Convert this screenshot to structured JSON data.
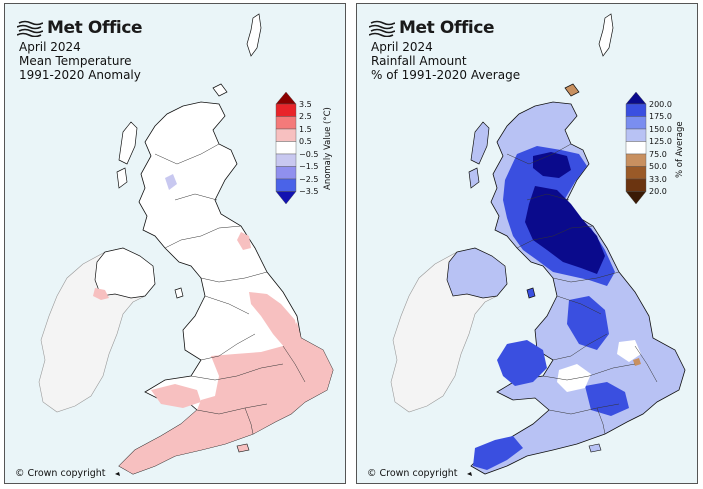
{
  "panels": [
    {
      "brand": "Met Office",
      "title_lines": [
        "April 2024",
        "Mean Temperature",
        "1991-2020 Anomaly"
      ],
      "legend_title": "Anomaly Value (°C)",
      "legend_ticks": [
        "3.5",
        "2.5",
        "1.5",
        "0.5",
        "−0.5",
        "−1.5",
        "−2.5",
        "−3.5"
      ],
      "legend_colors": [
        "#8b0000",
        "#e8242a",
        "#f47a7a",
        "#f7c0c0",
        "#ffffff",
        "#c8c8f0",
        "#9090ee",
        "#4a63e8",
        "#1212b0"
      ],
      "copyright": "© Crown copyright"
    },
    {
      "brand": "Met Office",
      "title_lines": [
        "April 2024",
        "Rainfall Amount",
        "% of 1991-2020 Average"
      ],
      "legend_title": "% of Average",
      "legend_ticks": [
        "200.0",
        "175.0",
        "150.0",
        "125.0",
        "75.0",
        "50.0",
        "33.0",
        "20.0"
      ],
      "legend_colors": [
        "#0a0a8c",
        "#3a4fe0",
        "#7a8ef0",
        "#b8c2f4",
        "#ffffff",
        "#c89060",
        "#9a5a28",
        "#6b3410",
        "#3a1a05"
      ],
      "copyright": "© Crown copyright"
    }
  ],
  "colors": {
    "sea": "#eaf5f8",
    "land_neutral": "#ffffff",
    "ireland": "#f4f4f4",
    "coast": "#111111",
    "temp_warm": "#f7c0c0",
    "rain_high": "#b8c2f4",
    "rain_very_high": "#3a4fe0",
    "rain_extreme": "#0a0a8c"
  }
}
